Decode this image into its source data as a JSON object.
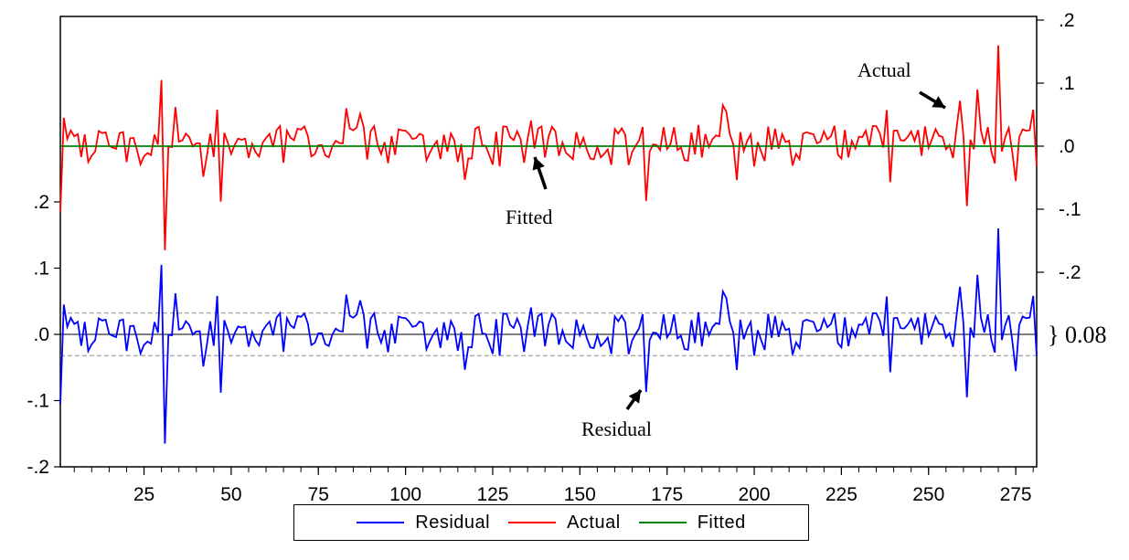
{
  "chart_data": {
    "type": "line",
    "x_ticks": [
      25,
      50,
      75,
      100,
      125,
      150,
      175,
      200,
      225,
      250,
      275
    ],
    "x_range": [
      1,
      281
    ],
    "left_axis": {
      "ticks": [
        ".2",
        ".1",
        ".0",
        "-.1",
        "-.2"
      ],
      "tick_values": [
        0.2,
        0.1,
        0.0,
        -0.1,
        -0.2
      ],
      "ylim": [
        -0.2,
        0.25
      ]
    },
    "right_axis": {
      "ticks": [
        ".2",
        ".1",
        ".0",
        "-.1",
        "-.2"
      ],
      "tick_values": [
        0.2,
        0.1,
        0.0,
        -0.1,
        -0.2
      ],
      "ylim": [
        -0.25,
        0.2
      ]
    },
    "residual_band": {
      "lower": -0.032,
      "upper": 0.032,
      "label": "} 0.08"
    },
    "grid": false,
    "legend_placement": "bottom-center",
    "series": [
      {
        "name": "Residual",
        "axis": "left",
        "color": "#0000ff",
        "peaks": [
          {
            "x": 1,
            "y": -0.105
          },
          {
            "x": 2,
            "y": 0.045
          },
          {
            "x": 30,
            "y": 0.105
          },
          {
            "x": 31,
            "y": -0.165
          },
          {
            "x": 34,
            "y": 0.062
          },
          {
            "x": 46,
            "y": 0.058
          },
          {
            "x": 47,
            "y": -0.088
          },
          {
            "x": 83,
            "y": 0.06
          },
          {
            "x": 169,
            "y": -0.087
          },
          {
            "x": 191,
            "y": 0.065
          },
          {
            "x": 259,
            "y": 0.072
          },
          {
            "x": 261,
            "y": -0.095
          },
          {
            "x": 264,
            "y": 0.09
          },
          {
            "x": 270,
            "y": 0.16
          },
          {
            "x": 280,
            "y": 0.058
          }
        ]
      },
      {
        "name": "Actual",
        "axis": "right",
        "color": "#ff0000",
        "peaks": [
          {
            "x": 1,
            "y": -0.105
          },
          {
            "x": 2,
            "y": 0.045
          },
          {
            "x": 30,
            "y": 0.105
          },
          {
            "x": 31,
            "y": -0.165
          },
          {
            "x": 34,
            "y": 0.062
          },
          {
            "x": 46,
            "y": 0.058
          },
          {
            "x": 47,
            "y": -0.088
          },
          {
            "x": 83,
            "y": 0.06
          },
          {
            "x": 169,
            "y": -0.087
          },
          {
            "x": 191,
            "y": 0.065
          },
          {
            "x": 259,
            "y": 0.072
          },
          {
            "x": 261,
            "y": -0.095
          },
          {
            "x": 264,
            "y": 0.09
          },
          {
            "x": 270,
            "y": 0.16
          },
          {
            "x": 280,
            "y": 0.058
          }
        ]
      },
      {
        "name": "Fitted",
        "axis": "right",
        "color": "#008000",
        "values_constant": 0.0
      }
    ],
    "annotations": {
      "actual": "Actual",
      "fitted": "Fitted",
      "residual": "Residual"
    }
  },
  "legend": {
    "items": [
      {
        "label": "Residual",
        "color": "#0000ff"
      },
      {
        "label": "Actual",
        "color": "#ff0000"
      },
      {
        "label": "Fitted",
        "color": "#008000"
      }
    ]
  }
}
